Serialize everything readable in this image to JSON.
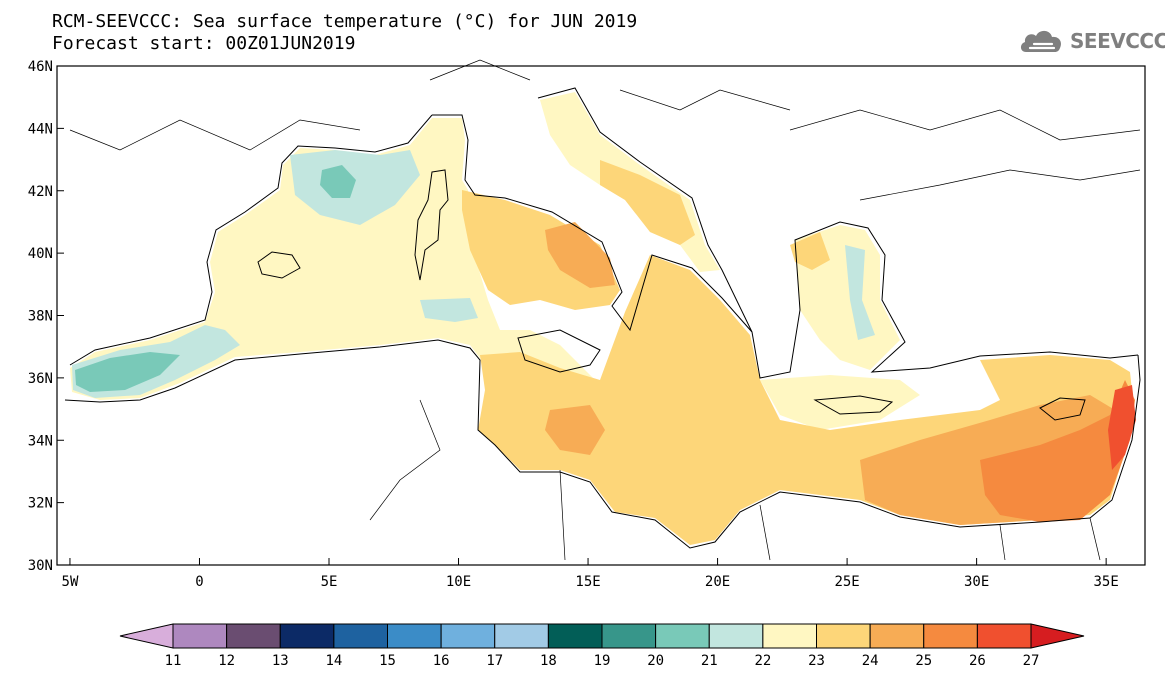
{
  "header": {
    "title_line1": "RCM-SEEVCCC: Sea surface temperature (°C) for JUN 2019",
    "title_line2": "Forecast start: 00Z01JUN2019",
    "logo_text": "SEEVCCC"
  },
  "map": {
    "variable": "Sea surface temperature (°C)",
    "region": "Mediterranean Sea",
    "lon_range": [
      -5.5,
      36.5
    ],
    "lat_range": [
      30,
      46
    ],
    "lon_ticks": [
      {
        "value": -5,
        "label": "5W"
      },
      {
        "value": 0,
        "label": "0"
      },
      {
        "value": 5,
        "label": "5E"
      },
      {
        "value": 10,
        "label": "10E"
      },
      {
        "value": 15,
        "label": "15E"
      },
      {
        "value": 20,
        "label": "20E"
      },
      {
        "value": 25,
        "label": "25E"
      },
      {
        "value": 30,
        "label": "30E"
      },
      {
        "value": 35,
        "label": "35E"
      }
    ],
    "lat_ticks": [
      {
        "value": 30,
        "label": "30N"
      },
      {
        "value": 32,
        "label": "32N"
      },
      {
        "value": 34,
        "label": "34N"
      },
      {
        "value": 36,
        "label": "36N"
      },
      {
        "value": 38,
        "label": "38N"
      },
      {
        "value": 40,
        "label": "40N"
      },
      {
        "value": 42,
        "label": "42N"
      },
      {
        "value": 44,
        "label": "44N"
      },
      {
        "value": 46,
        "label": "46N"
      }
    ],
    "colors": {
      "t21": "#79c9b8",
      "t22": "#c2e6df",
      "t23": "#fff7c2",
      "t24": "#fdd679",
      "t25": "#f7ac55",
      "t26": "#f58a3f",
      "t27": "#f0502f",
      "coast": "#000000"
    }
  },
  "colorbar": {
    "labels": [
      "11",
      "12",
      "13",
      "14",
      "15",
      "16",
      "17",
      "18",
      "19",
      "20",
      "21",
      "22",
      "23",
      "24",
      "25",
      "26",
      "27"
    ],
    "colors": [
      "#d8aedb",
      "#ae88bf",
      "#6a4d71",
      "#0c2a66",
      "#1e62a0",
      "#3b8cc7",
      "#6fb0de",
      "#a2cbe6",
      "#025e57",
      "#37968a",
      "#79c9b8",
      "#c2e6df",
      "#fff7c2",
      "#fdd679",
      "#f7ac55",
      "#f58a3f",
      "#f0502f",
      "#d61d20"
    ]
  }
}
